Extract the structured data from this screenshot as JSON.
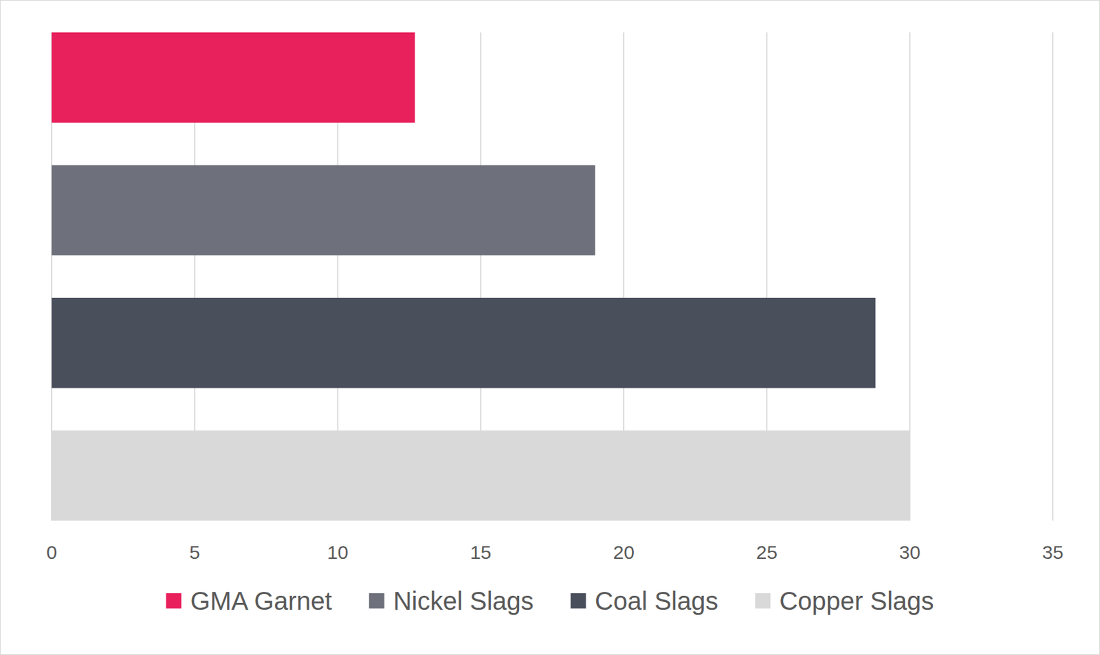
{
  "chart_data": {
    "type": "bar",
    "orientation": "horizontal",
    "categories": [
      "GMA Garnet",
      "Nickel Slags",
      "Coal Slags",
      "Copper Slags"
    ],
    "values": [
      12.7,
      19,
      28.8,
      30
    ],
    "colors": [
      "#e8205b",
      "#6e707b",
      "#4a4f5c",
      "#d9d9d9"
    ],
    "xlim": [
      0,
      35
    ],
    "xticks": [
      0,
      5,
      10,
      15,
      20,
      25,
      30,
      35
    ],
    "grid": true,
    "legend": "bottom",
    "tick_labels": "x"
  }
}
